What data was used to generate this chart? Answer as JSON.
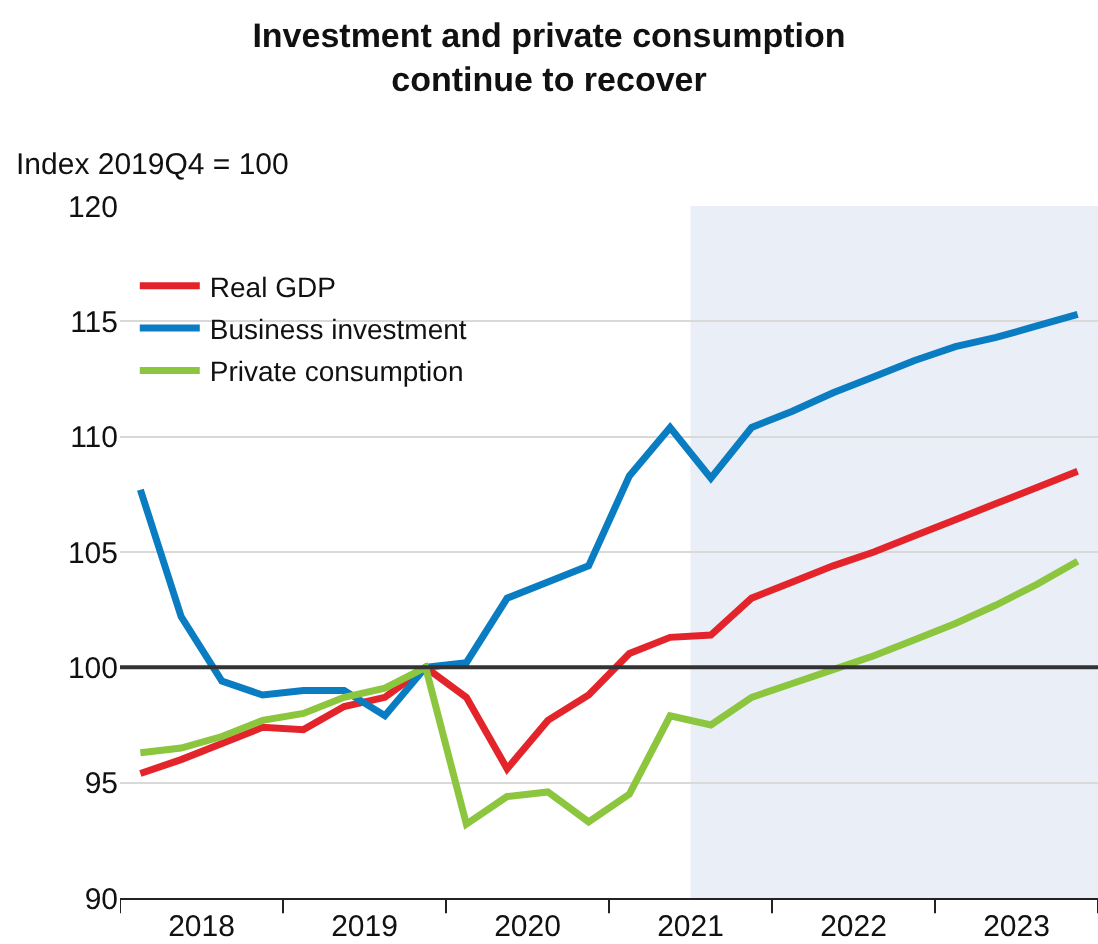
{
  "chart_data": {
    "type": "line",
    "title": "Investment and private consumption\ncontinue to recover",
    "ylabel": "Index 2019Q4 = 100",
    "x": [
      2018.125,
      2018.375,
      2018.625,
      2018.875,
      2019.125,
      2019.375,
      2019.625,
      2019.875,
      2020.125,
      2020.375,
      2020.625,
      2020.875,
      2021.125,
      2021.375,
      2021.625,
      2021.875,
      2022.125,
      2022.375,
      2022.625,
      2022.875,
      2023.125,
      2023.375,
      2023.625,
      2023.875
    ],
    "series": [
      {
        "name": "Real GDP",
        "color": "#e3242b",
        "values": [
          95.4,
          96.0,
          96.7,
          97.4,
          97.3,
          98.3,
          98.7,
          100,
          98.7,
          95.6,
          97.7,
          98.8,
          100.6,
          101.3,
          101.4,
          103.0,
          103.7,
          104.4,
          105.0,
          105.7,
          106.4,
          107.1,
          107.8,
          108.5
        ]
      },
      {
        "name": "Business investment",
        "color": "#0a7cc1",
        "values": [
          107.7,
          102.2,
          99.4,
          98.8,
          99.0,
          99.0,
          97.9,
          100,
          100.2,
          103.0,
          103.7,
          104.4,
          108.3,
          110.4,
          108.2,
          110.4,
          111.1,
          111.9,
          112.6,
          113.3,
          113.9,
          114.3,
          114.8,
          115.3
        ]
      },
      {
        "name": "Private consumption",
        "color": "#8cc63f",
        "values": [
          96.3,
          96.5,
          97.0,
          97.7,
          98.0,
          98.7,
          99.1,
          100,
          93.2,
          94.4,
          94.6,
          93.3,
          94.5,
          97.9,
          97.5,
          98.7,
          99.3,
          99.9,
          100.5,
          101.2,
          101.9,
          102.7,
          103.6,
          104.6
        ]
      }
    ],
    "xlim": [
      2018,
      2024
    ],
    "xticks": [
      {
        "value": 2018,
        "label": null
      },
      {
        "value": 2018.5,
        "label": "2018"
      },
      {
        "value": 2019,
        "label": null
      },
      {
        "value": 2019.5,
        "label": "2019"
      },
      {
        "value": 2020,
        "label": null
      },
      {
        "value": 2020.5,
        "label": "2020"
      },
      {
        "value": 2021,
        "label": null
      },
      {
        "value": 2021.5,
        "label": "2021"
      },
      {
        "value": 2022,
        "label": null
      },
      {
        "value": 2022.5,
        "label": "2022"
      },
      {
        "value": 2023,
        "label": null
      },
      {
        "value": 2023.5,
        "label": "2023"
      },
      {
        "value": 2024,
        "label": null
      }
    ],
    "ylim": [
      90,
      120
    ],
    "yticks": [
      90,
      95,
      100,
      105,
      110,
      115,
      120
    ],
    "ref_lines": [
      {
        "axis": "y",
        "value": 100,
        "color": "#333333"
      }
    ],
    "bands": [
      {
        "axis": "x",
        "from": 2021.5,
        "to": 2024,
        "color": "#eaeef6"
      }
    ],
    "grid": "y",
    "legend": "top left",
    "marker": "none",
    "line_style": "solid"
  }
}
